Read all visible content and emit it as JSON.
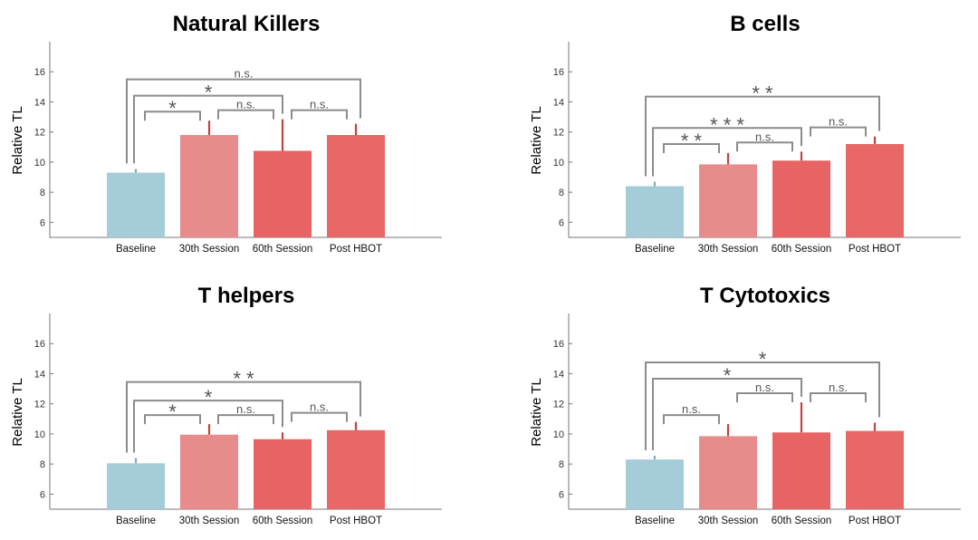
{
  "colors": {
    "baseline": "#a4ccd9",
    "session30": "#e88b8b",
    "session60": "#e86363",
    "post": "#e86767",
    "error_baseline": "#88aab8",
    "error_red": "#c0453f",
    "bracket": "#8c8c8c"
  },
  "chart_data": [
    {
      "type": "bar",
      "title": "Natural Killers",
      "ylabel": "Relative TL",
      "ylim": [
        5,
        18
      ],
      "yticks": [
        "6",
        "8",
        "10",
        "12",
        "14",
        "16"
      ],
      "categories": [
        "Baseline",
        "30th Session",
        "60th Session",
        "Post HBOT"
      ],
      "values": [
        9.3,
        11.8,
        10.75,
        11.8
      ],
      "errors": [
        0.25,
        0.95,
        2.1,
        0.75
      ],
      "significance": [
        {
          "from": 0,
          "to": 1,
          "label": "*"
        },
        {
          "from": 1,
          "to": 2,
          "label": "n.s."
        },
        {
          "from": 2,
          "to": 3,
          "label": "n.s."
        },
        {
          "from": 0,
          "to": 2,
          "label": "*"
        },
        {
          "from": 0,
          "to": 3,
          "label": "n.s."
        }
      ]
    },
    {
      "type": "bar",
      "title": "B cells",
      "ylabel": "Relative TL",
      "ylim": [
        5,
        18
      ],
      "yticks": [
        "6",
        "8",
        "10",
        "12",
        "14",
        "16"
      ],
      "categories": [
        "Baseline",
        "30th Session",
        "60th Session",
        "Post HBOT"
      ],
      "values": [
        8.4,
        9.85,
        10.1,
        11.2
      ],
      "errors": [
        0.3,
        0.75,
        0.6,
        0.5
      ],
      "significance": [
        {
          "from": 0,
          "to": 1,
          "label": "**"
        },
        {
          "from": 1,
          "to": 2,
          "label": "n.s."
        },
        {
          "from": 2,
          "to": 3,
          "label": "n.s."
        },
        {
          "from": 0,
          "to": 2,
          "label": "***"
        },
        {
          "from": 0,
          "to": 3,
          "label": "**"
        }
      ]
    },
    {
      "type": "bar",
      "title": "T helpers",
      "ylabel": "Relative TL",
      "ylim": [
        5,
        18
      ],
      "yticks": [
        "6",
        "8",
        "10",
        "12",
        "14",
        "16"
      ],
      "categories": [
        "Baseline",
        "30th Session",
        "60th Session",
        "Post HBOT"
      ],
      "values": [
        8.05,
        9.95,
        9.65,
        10.25
      ],
      "errors": [
        0.35,
        0.7,
        0.45,
        0.55
      ],
      "significance": [
        {
          "from": 0,
          "to": 1,
          "label": "*"
        },
        {
          "from": 1,
          "to": 2,
          "label": "n.s."
        },
        {
          "from": 2,
          "to": 3,
          "label": "n.s."
        },
        {
          "from": 0,
          "to": 2,
          "label": "*"
        },
        {
          "from": 0,
          "to": 3,
          "label": "**"
        }
      ]
    },
    {
      "type": "bar",
      "title": "T Cytotoxics",
      "ylabel": "Relative TL",
      "ylim": [
        5,
        18
      ],
      "yticks": [
        "6",
        "8",
        "10",
        "12",
        "14",
        "16"
      ],
      "categories": [
        "Baseline",
        "30th Session",
        "60th Session",
        "Post HBOT"
      ],
      "values": [
        8.3,
        9.85,
        10.1,
        10.2
      ],
      "errors": [
        0.25,
        0.8,
        2.0,
        0.55
      ],
      "significance": [
        {
          "from": 0,
          "to": 1,
          "label": "n.s."
        },
        {
          "from": 1,
          "to": 2,
          "label": "n.s."
        },
        {
          "from": 2,
          "to": 3,
          "label": "n.s."
        },
        {
          "from": 0,
          "to": 2,
          "label": "*"
        },
        {
          "from": 0,
          "to": 3,
          "label": "*"
        }
      ]
    }
  ]
}
